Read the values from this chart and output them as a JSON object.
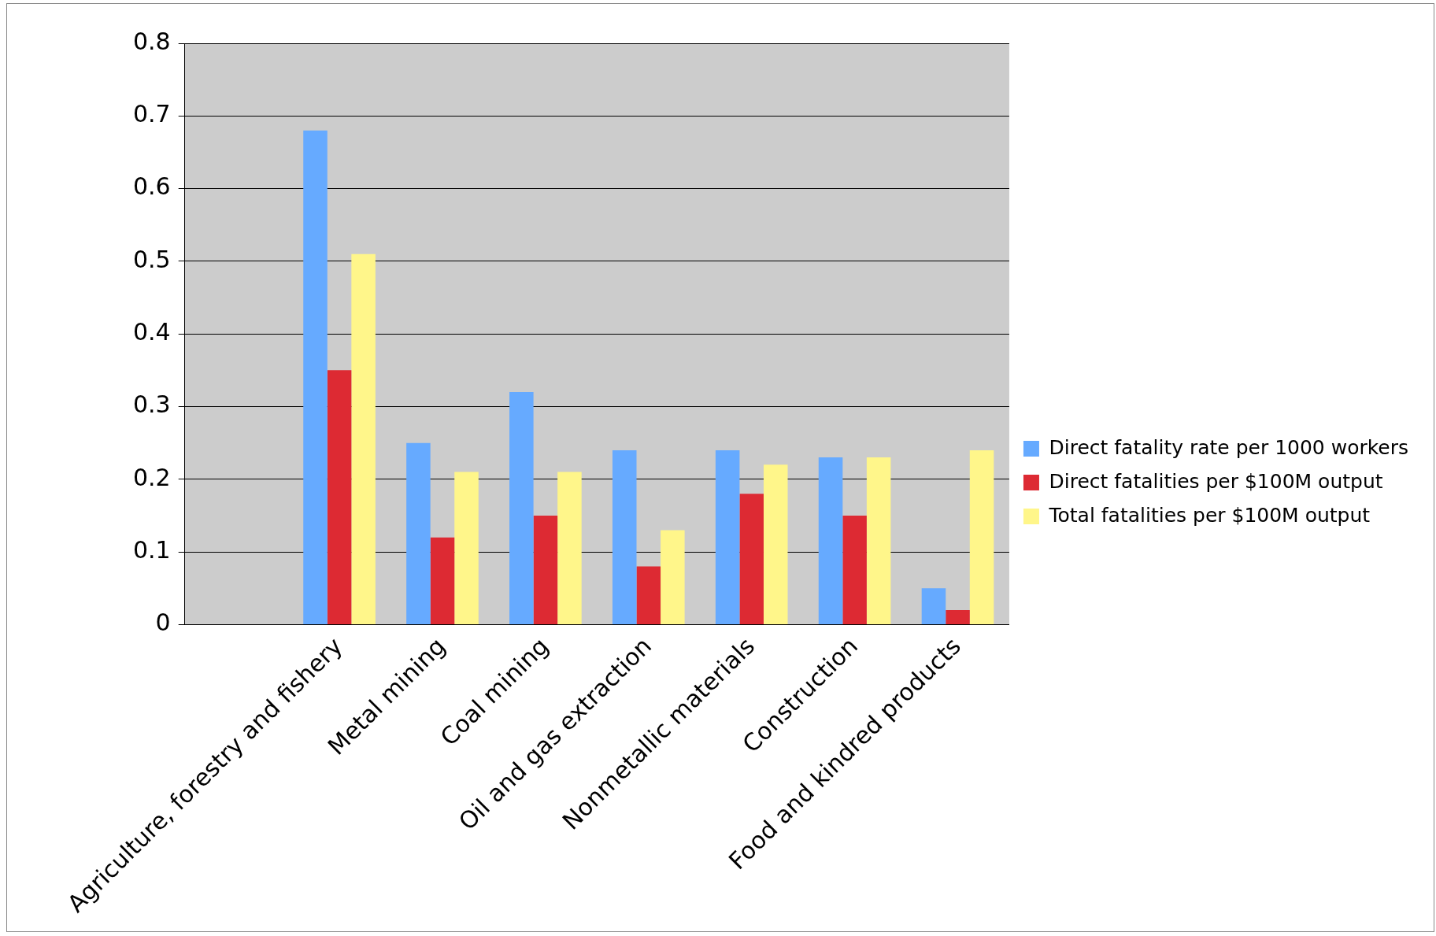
{
  "chart_data": {
    "type": "bar",
    "categories": [
      null,
      "Agriculture, forestry and fishery",
      "Metal mining",
      "Coal mining",
      "Oil and gas extraction",
      "Nonmetallic materials",
      "Construction",
      "Food and kindred products"
    ],
    "series": [
      {
        "name": "Direct fatality rate per 1000 workers",
        "color": "#66aaff",
        "values": [
          null,
          0.68,
          0.25,
          0.32,
          0.24,
          0.24,
          0.23,
          0.05
        ]
      },
      {
        "name": "Direct fatalities per $100M output",
        "color": "#dd2a33",
        "values": [
          null,
          0.35,
          0.12,
          0.15,
          0.08,
          0.18,
          0.15,
          0.02
        ]
      },
      {
        "name": "Total fatalities per $100M output",
        "color": "#fff68a",
        "values": [
          null,
          0.51,
          0.21,
          0.21,
          0.13,
          0.22,
          0.23,
          0.24
        ]
      }
    ],
    "ylim": [
      0,
      0.8
    ],
    "yticks": [
      0,
      0.1,
      0.2,
      0.3,
      0.4,
      0.5,
      0.6,
      0.7,
      0.8
    ],
    "grid": "y",
    "legend": "right"
  }
}
